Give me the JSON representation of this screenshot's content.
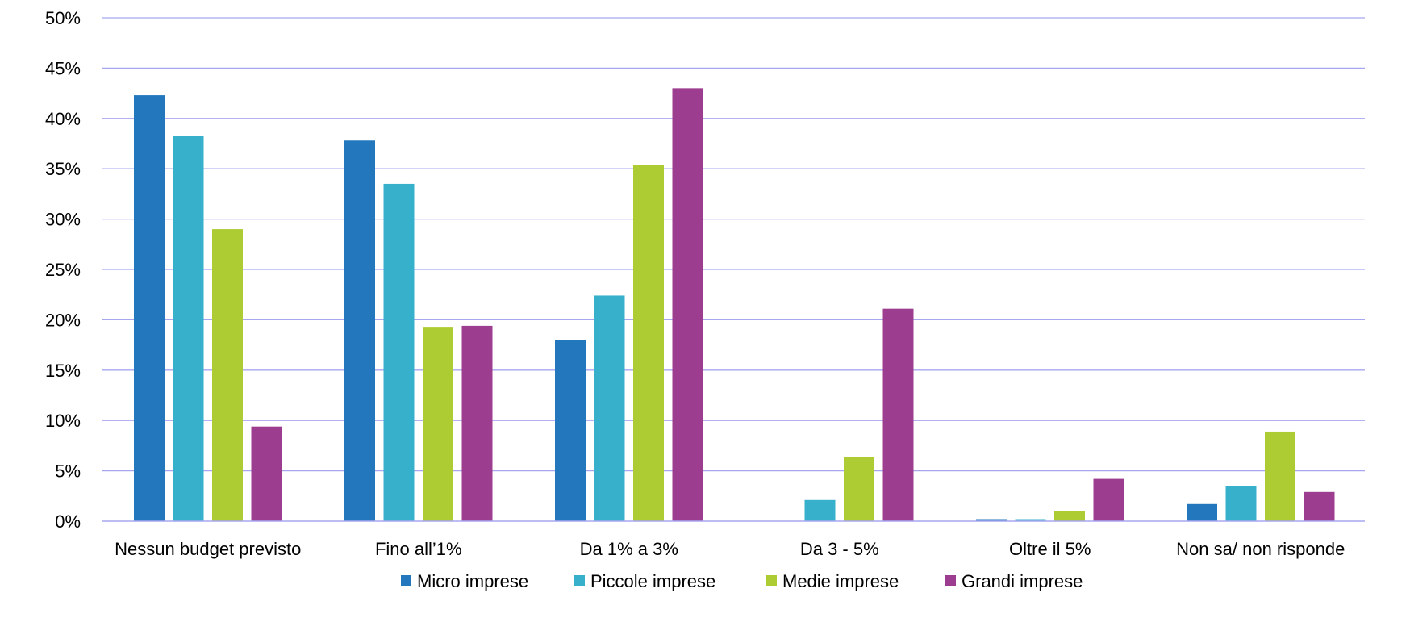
{
  "chart_data": {
    "type": "bar",
    "title": "",
    "xlabel": "",
    "ylabel": "",
    "ylim": [
      0,
      50
    ],
    "y_ticks": [
      0,
      5,
      10,
      15,
      20,
      25,
      30,
      35,
      40,
      45,
      50
    ],
    "y_tick_suffix": "%",
    "grid": true,
    "grid_color": "#a7a7f0",
    "legend_position": "bottom",
    "categories": [
      "Nessun budget previsto",
      "Fino all’1%",
      "Da 1% a 3%",
      "Da 3 - 5%",
      "Oltre il 5%",
      "Non sa/ non risponde"
    ],
    "series": [
      {
        "name": "Micro imprese",
        "color": "#2277bd",
        "values": [
          42.3,
          37.8,
          18.0,
          0.0,
          0.2,
          1.7
        ]
      },
      {
        "name": "Piccole imprese",
        "color": "#37b0cb",
        "values": [
          38.3,
          33.5,
          22.4,
          2.1,
          0.2,
          3.5
        ]
      },
      {
        "name": "Medie imprese",
        "color": "#adcb33",
        "values": [
          29.0,
          19.3,
          35.4,
          6.4,
          1.0,
          8.9
        ]
      },
      {
        "name": "Grandi imprese",
        "color": "#9d3d8f",
        "values": [
          9.4,
          19.4,
          43.0,
          21.1,
          4.2,
          2.9
        ]
      }
    ]
  }
}
